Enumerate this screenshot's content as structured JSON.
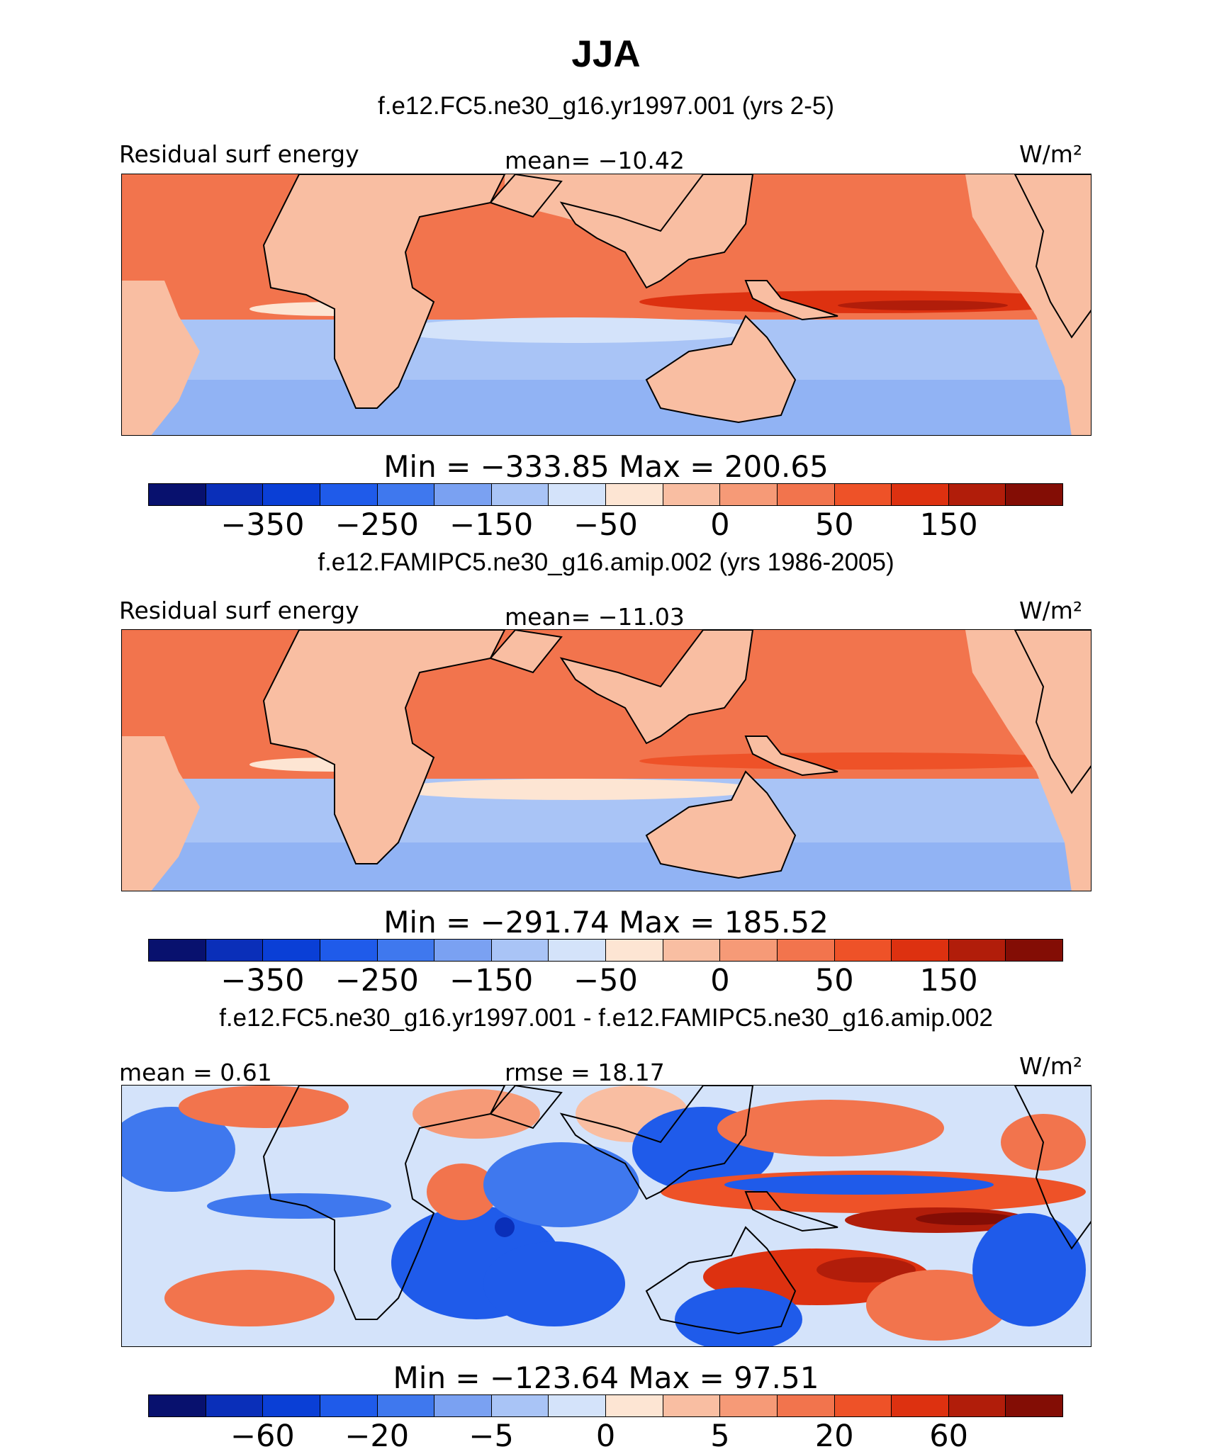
{
  "title": "JJA",
  "colors": {
    "abs_scale": [
      "#08116e",
      "#0a2fb9",
      "#0a3fd6",
      "#1f5bea",
      "#3f78ee",
      "#7aa1f2",
      "#a9c4f6",
      "#d4e3fa",
      "#fde5d3",
      "#f9bea2",
      "#f69a77",
      "#f2744d",
      "#ee5228",
      "#dd3110",
      "#b11d0a",
      "#830d05"
    ],
    "diff_scale": [
      "#08116e",
      "#0a2fb9",
      "#0a3fd6",
      "#1f5bea",
      "#3f78ee",
      "#7aa1f2",
      "#a9c4f6",
      "#d4e3fa",
      "#fde5d3",
      "#f9bea2",
      "#f69a77",
      "#f2744d",
      "#ee5228",
      "#dd3110",
      "#b11d0a",
      "#830d05"
    ],
    "land_positive": "#f9bea2",
    "ocean_base": "#a9c4f6"
  },
  "panels": [
    {
      "case_title": "f.e12.FC5.ne30_g16.yr1997.001 (yrs 2-5)",
      "left_label": "Residual surf energy",
      "center_label": "mean= −10.42",
      "units": "W/m²",
      "minmax": "Min = −333.85 Max = 200.65",
      "ticks": [
        "−350",
        "−250",
        "−150",
        "−50",
        "0",
        "50",
        "150"
      ]
    },
    {
      "case_title": "f.e12.FAMIPC5.ne30_g16.amip.002 (yrs 1986-2005)",
      "left_label": "Residual surf energy",
      "center_label": "mean= −11.03",
      "units": "W/m²",
      "minmax": "Min = −291.74 Max = 185.52",
      "ticks": [
        "−350",
        "−250",
        "−150",
        "−50",
        "0",
        "50",
        "150"
      ]
    },
    {
      "case_title": "f.e12.FC5.ne30_g16.yr1997.001 - f.e12.FAMIPC5.ne30_g16.amip.002",
      "left_label": "mean =   0.61",
      "center_label": "rmse =   18.17",
      "units": "W/m²",
      "minmax": "Min = −123.64 Max =  97.51",
      "ticks": [
        "−60",
        "−20",
        "−5",
        "0",
        "5",
        "20",
        "60"
      ]
    }
  ]
}
